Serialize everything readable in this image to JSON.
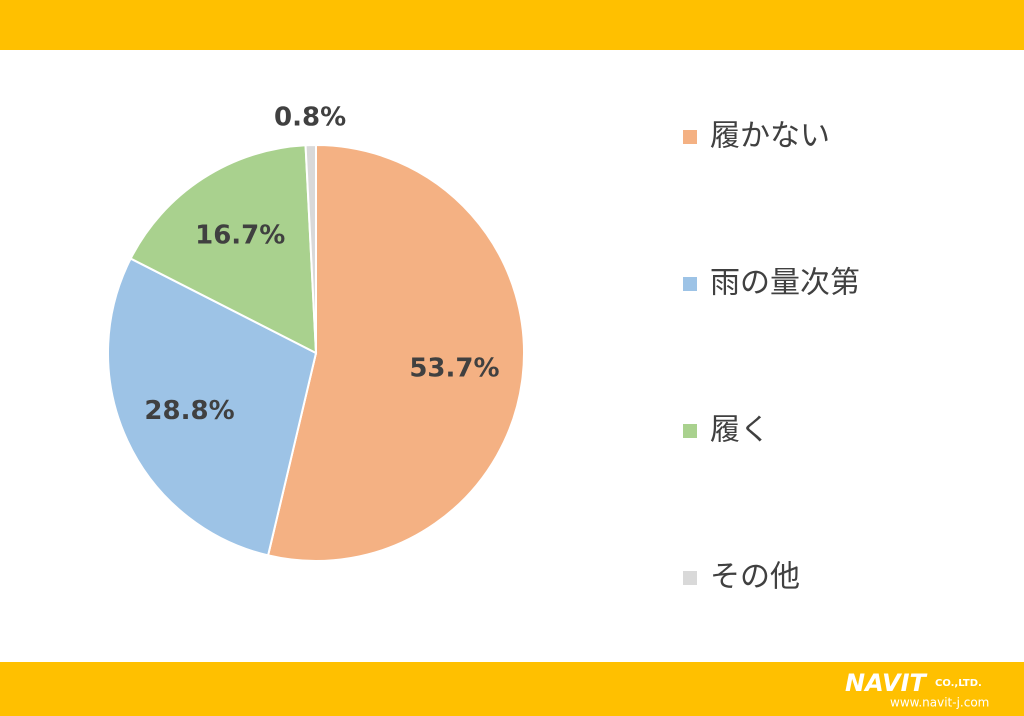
{
  "chart_data": {
    "type": "pie",
    "categories": [
      "履かない",
      "雨の量次第",
      "履く",
      "その他"
    ],
    "values": [
      53.7,
      28.8,
      16.7,
      0.8
    ],
    "value_labels": [
      "53.7%",
      "28.8%",
      "16.7%",
      "0.8%"
    ],
    "colors": [
      "#f4b183",
      "#9dc3e6",
      "#a9d18e",
      "#d9d9d9"
    ],
    "legend": "right"
  },
  "footer": {
    "logo": "NAVIT",
    "company": "CO.,LTD.",
    "url": "www.navit-j.com"
  }
}
